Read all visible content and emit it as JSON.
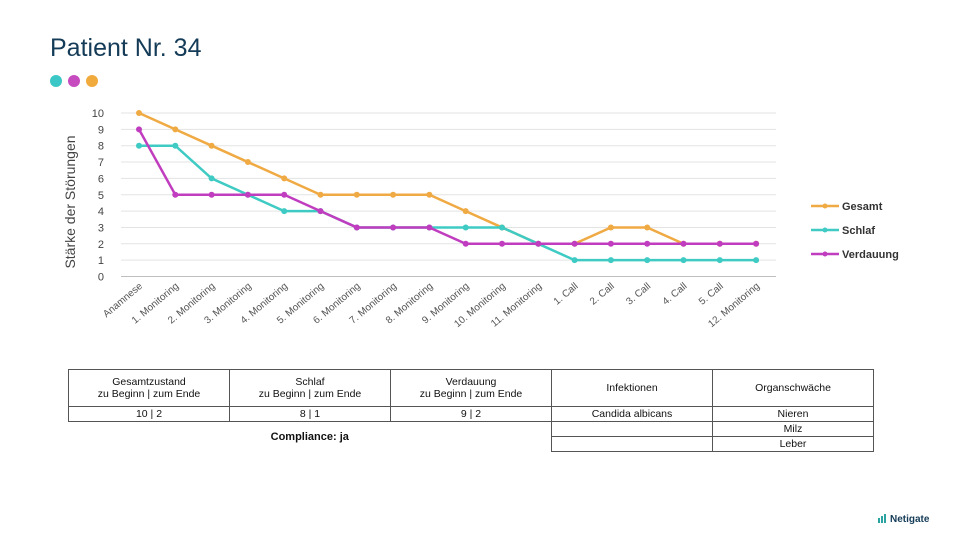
{
  "title": "Patient Nr. 34",
  "dots": [
    "#3cc7c7",
    "#c64bbf",
    "#f1aa3c"
  ],
  "chart_data": {
    "type": "line",
    "ylabel": "Stärke der Störungen",
    "ylim": [
      0,
      10
    ],
    "yticks": [
      0,
      1,
      2,
      3,
      4,
      5,
      6,
      7,
      8,
      9,
      10
    ],
    "categories": [
      "Anamnese",
      "1. Monitoring",
      "2. Monitoring",
      "3. Monitoring",
      "4. Monitoring",
      "5. Monitoring",
      "6. Monitoring",
      "7. Monitoring",
      "8. Monitoring",
      "9. Monitoring",
      "10. Monitoring",
      "11. Monitoring",
      "1. Call",
      "2. Call",
      "3. Call",
      "4. Call",
      "5. Call",
      "12. Monitoring"
    ],
    "grid": true,
    "legend": "right",
    "series": [
      {
        "name": "Gesamt",
        "color": "#f0aa44",
        "values": [
          10,
          9,
          8,
          7,
          6,
          5,
          5,
          5,
          5,
          4,
          3,
          2,
          2,
          3,
          3,
          2,
          2,
          2
        ]
      },
      {
        "name": "Schlaf",
        "color": "#3fcbc4",
        "values": [
          8,
          8,
          6,
          5,
          4,
          4,
          3,
          3,
          3,
          3,
          3,
          2,
          1,
          1,
          1,
          1,
          1,
          1
        ]
      },
      {
        "name": "Verdauung",
        "color": "#c13dbf",
        "values": [
          9,
          5,
          5,
          5,
          5,
          4,
          3,
          3,
          3,
          2,
          2,
          2,
          2,
          2,
          2,
          2,
          2,
          2
        ]
      }
    ]
  },
  "table": {
    "headers": [
      {
        "line1": "Gesamtzustand",
        "line2": "zu Beginn | zum Ende"
      },
      {
        "line1": "Schlaf",
        "line2": "zu Beginn | zum Ende"
      },
      {
        "line1": "Verdauung",
        "line2": "zu Beginn | zum Ende"
      },
      {
        "line1": "Infektionen",
        "line2": ""
      },
      {
        "line1": "Organschwäche",
        "line2": ""
      }
    ],
    "values": [
      "10 | 2",
      "8 | 1",
      "9 | 2"
    ],
    "compliance": "Compliance: ja",
    "infektionen": [
      "Candida albicans",
      "",
      ""
    ],
    "organschwaeche": [
      "Nieren",
      "Milz",
      "Leber"
    ]
  },
  "logo": "Netigate"
}
